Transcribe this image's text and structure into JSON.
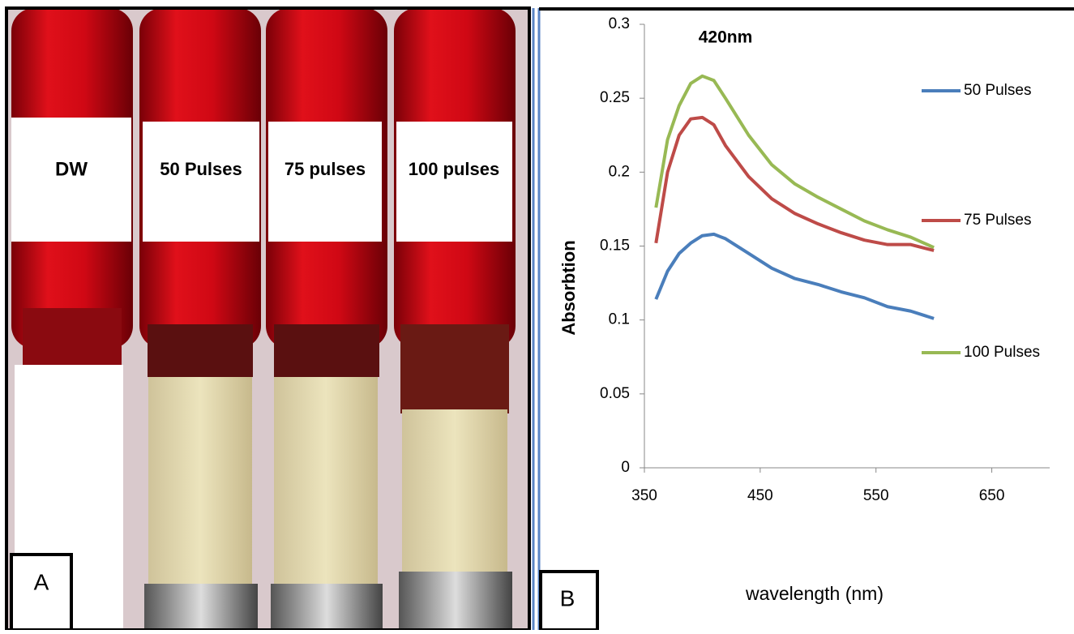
{
  "photo": {
    "panel_label": "A",
    "tube_labels": [
      "DW",
      "50 Pulses",
      "75 pulses",
      "100 pulses"
    ]
  },
  "chart_data": {
    "type": "line",
    "panel_label": "B",
    "annotation": "420nm",
    "x_label": "wavelength (nm)",
    "y_label": "Absorbtion",
    "x": [
      360,
      370,
      380,
      390,
      400,
      410,
      420,
      440,
      460,
      480,
      500,
      520,
      540,
      560,
      580,
      600
    ],
    "series": [
      {
        "name": "50 Pulses",
        "color": "#4a7ebb",
        "values": [
          0.114,
          0.133,
          0.145,
          0.152,
          0.157,
          0.158,
          0.155,
          0.145,
          0.135,
          0.128,
          0.124,
          0.119,
          0.115,
          0.109,
          0.106,
          0.101
        ]
      },
      {
        "name": "75 Pulses",
        "color": "#be4b48",
        "values": [
          0.152,
          0.2,
          0.225,
          0.236,
          0.237,
          0.232,
          0.218,
          0.197,
          0.182,
          0.172,
          0.165,
          0.159,
          0.154,
          0.151,
          0.151,
          0.147
        ]
      },
      {
        "name": "100 Pulses",
        "color": "#98b954",
        "values": [
          0.176,
          0.222,
          0.245,
          0.26,
          0.265,
          0.262,
          0.25,
          0.225,
          0.205,
          0.192,
          0.183,
          0.175,
          0.167,
          0.161,
          0.156,
          0.149
        ]
      }
    ],
    "xlim": [
      350,
      700
    ],
    "xticks": [
      350,
      450,
      550,
      650
    ],
    "ylim": [
      0,
      0.3
    ],
    "yticks": [
      0,
      0.05,
      0.1,
      0.15,
      0.2,
      0.25,
      0.3
    ],
    "grid": false,
    "legend": "right"
  }
}
